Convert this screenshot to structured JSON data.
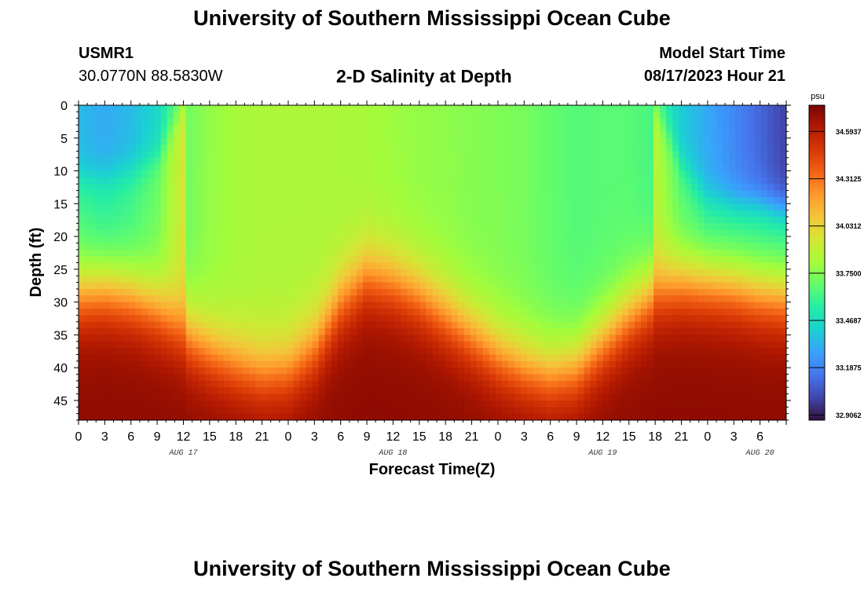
{
  "header": {
    "title": "University of Southern Mississippi Ocean Cube",
    "station_id": "USMR1",
    "station_coords": "30.0770N  88.5830W",
    "plot_title": "2-D Salinity at Depth",
    "model_start_label": "Model Start Time",
    "model_start_value": "08/17/2023 Hour 21"
  },
  "footer": {
    "title": "University of Southern Mississippi Ocean Cube"
  },
  "chart_data": {
    "type": "heatmap",
    "title": "2-D Salinity at Depth",
    "xlabel": "Forecast Time(Z)",
    "ylabel": "Depth (ft)",
    "x_ticks": [
      "0",
      "3",
      "6",
      "9",
      "12",
      "15",
      "18",
      "21",
      "0",
      "3",
      "6",
      "9",
      "12",
      "15",
      "18",
      "21",
      "0",
      "3",
      "6",
      "9",
      "12",
      "15",
      "18",
      "21",
      "0",
      "3",
      "6"
    ],
    "x_date_labels": [
      "AUG 17",
      "AUG 18",
      "AUG 19",
      "AUG 20"
    ],
    "y_ticks": [
      "0",
      "5",
      "10",
      "15",
      "20",
      "25",
      "30",
      "35",
      "40",
      "45"
    ],
    "ylim": [
      0,
      48
    ],
    "y_inverted": true,
    "colorbar": {
      "unit": "psu",
      "min": 32.875,
      "max": 34.75,
      "tick_labels": [
        "34.5937",
        "34.3125",
        "34.0312",
        "33.7500",
        "33.4687",
        "33.1875",
        "32.9062"
      ],
      "colors": [
        "#30123b",
        "#4145ab",
        "#4675ed",
        "#39a2fc",
        "#1bcfd4",
        "#24eca6",
        "#61fc6c",
        "#a4fc3b",
        "#d1e834",
        "#f3c63a",
        "#fe9b2d",
        "#f36315",
        "#d93806",
        "#b11901",
        "#7a0402"
      ]
    },
    "x_hours": [
      0,
      81
    ],
    "time_columns": [
      {
        "hour": 0,
        "thermocline_ft": 28.5,
        "upper": 33.35,
        "surf_ft": 11
      },
      {
        "hour": 3,
        "thermocline_ft": 28.0,
        "upper": 33.3,
        "surf_ft": 11
      },
      {
        "hour": 6,
        "thermocline_ft": 29.0,
        "upper": 33.35,
        "surf_ft": 10
      },
      {
        "hour": 9,
        "thermocline_ft": 31.0,
        "upper": 33.45,
        "surf_ft": 8
      },
      {
        "hour": 12,
        "thermocline_ft": 34.5,
        "upper": 33.7,
        "surf_ft": 0
      },
      {
        "hour": 15,
        "thermocline_ft": 37.5,
        "upper": 33.78,
        "surf_ft": 0
      },
      {
        "hour": 18,
        "thermocline_ft": 39.5,
        "upper": 33.82,
        "surf_ft": 0
      },
      {
        "hour": 21,
        "thermocline_ft": 41.0,
        "upper": 33.84,
        "surf_ft": 0
      },
      {
        "hour": 24,
        "thermocline_ft": 40.5,
        "upper": 33.84,
        "surf_ft": 0
      },
      {
        "hour": 27,
        "thermocline_ft": 37.0,
        "upper": 33.84,
        "surf_ft": 0
      },
      {
        "hour": 30,
        "thermocline_ft": 30.0,
        "upper": 33.83,
        "surf_ft": 0
      },
      {
        "hour": 33,
        "thermocline_ft": 26.0,
        "upper": 33.82,
        "surf_ft": 0
      },
      {
        "hour": 36,
        "thermocline_ft": 27.0,
        "upper": 33.8,
        "surf_ft": 0
      },
      {
        "hour": 39,
        "thermocline_ft": 29.0,
        "upper": 33.78,
        "surf_ft": 0
      },
      {
        "hour": 42,
        "thermocline_ft": 32.0,
        "upper": 33.77,
        "surf_ft": 0
      },
      {
        "hour": 45,
        "thermocline_ft": 35.0,
        "upper": 33.75,
        "surf_ft": 0
      },
      {
        "hour": 48,
        "thermocline_ft": 38.0,
        "upper": 33.74,
        "surf_ft": 0
      },
      {
        "hour": 51,
        "thermocline_ft": 40.0,
        "upper": 33.72,
        "surf_ft": 0
      },
      {
        "hour": 54,
        "thermocline_ft": 41.0,
        "upper": 33.68,
        "surf_ft": 0
      },
      {
        "hour": 57,
        "thermocline_ft": 40.0,
        "upper": 33.65,
        "surf_ft": 0
      },
      {
        "hour": 60,
        "thermocline_ft": 36.0,
        "upper": 33.66,
        "surf_ft": 0
      },
      {
        "hour": 63,
        "thermocline_ft": 32.0,
        "upper": 33.66,
        "surf_ft": 0
      },
      {
        "hour": 66,
        "thermocline_ft": 28.5,
        "upper": 33.62,
        "surf_ft": 0
      },
      {
        "hour": 69,
        "thermocline_ft": 27.0,
        "upper": 33.4,
        "surf_ft": 9
      },
      {
        "hour": 72,
        "thermocline_ft": 27.0,
        "upper": 33.3,
        "surf_ft": 14
      },
      {
        "hour": 75,
        "thermocline_ft": 27.5,
        "upper": 33.2,
        "surf_ft": 15
      },
      {
        "hour": 78,
        "thermocline_ft": 28.5,
        "upper": 33.1,
        "surf_ft": 15
      },
      {
        "hour": 81,
        "thermocline_ft": 29.0,
        "upper": 33.0,
        "surf_ft": 16
      }
    ],
    "bottom_salinity": 34.7,
    "surface_blue_salinity": 33.55
  }
}
